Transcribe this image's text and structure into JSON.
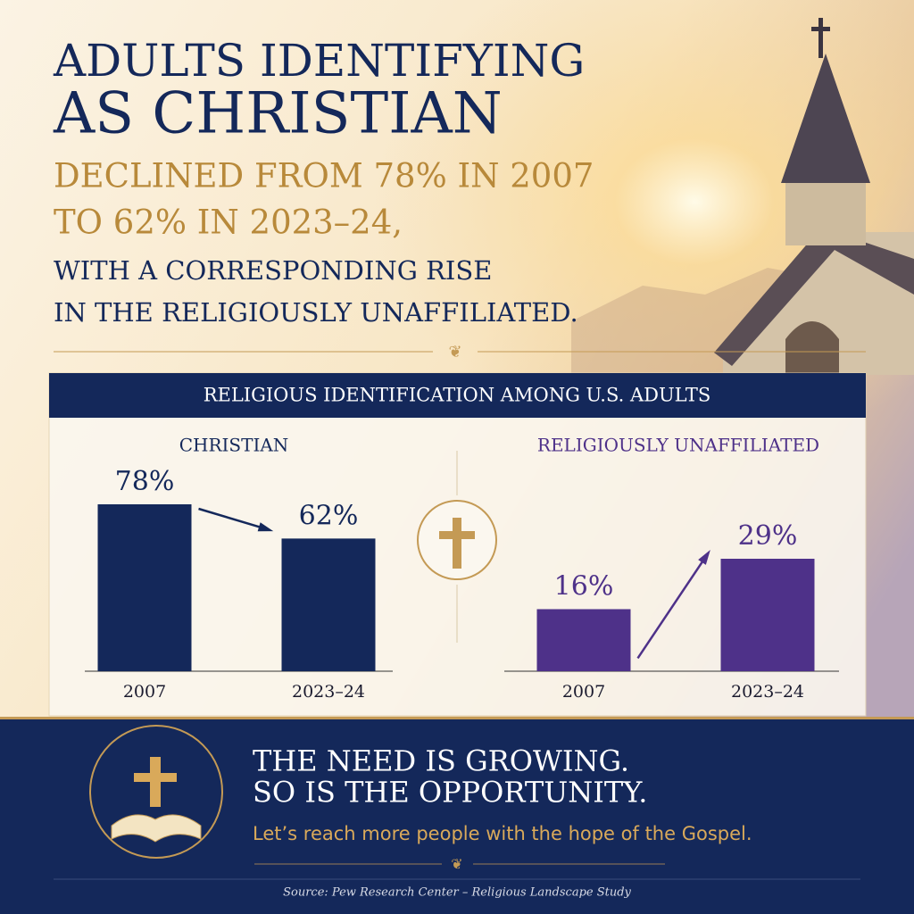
{
  "header": {
    "title_lines": [
      "ADULTS IDENTIFYING",
      "AS CHRISTIAN"
    ],
    "headline_lines": [
      "DECLINED FROM 78% IN 2007",
      "TO 62% IN 2023–24,"
    ],
    "subheadline_lines": [
      "WITH A CORRESPONDING RISE",
      "IN THE RELIGIOUSLY UNAFFILIATED."
    ]
  },
  "panel_title": "RELIGIOUS IDENTIFICATION AMONG U.S. ADULTS",
  "chart_data": [
    {
      "type": "bar",
      "title": "CHRISTIAN",
      "categories": [
        "2007",
        "2023–24"
      ],
      "values": [
        78,
        62
      ],
      "value_labels": [
        "78%",
        "62%"
      ],
      "color": "#14285a"
    },
    {
      "type": "bar",
      "title": "RELIGIOUSLY UNAFFILIATED",
      "categories": [
        "2007",
        "2023–24"
      ],
      "values": [
        16,
        29
      ],
      "value_labels": [
        "16%",
        "29%"
      ],
      "color": "#4e3189"
    }
  ],
  "footer": {
    "lines": [
      "THE NEED IS GROWING.",
      "SO IS THE OPPORTUNITY."
    ],
    "tagline": "Let’s reach more people with the hope of the Gospel.",
    "source": "Source: Pew Research Center – Religious Landscape Study"
  }
}
